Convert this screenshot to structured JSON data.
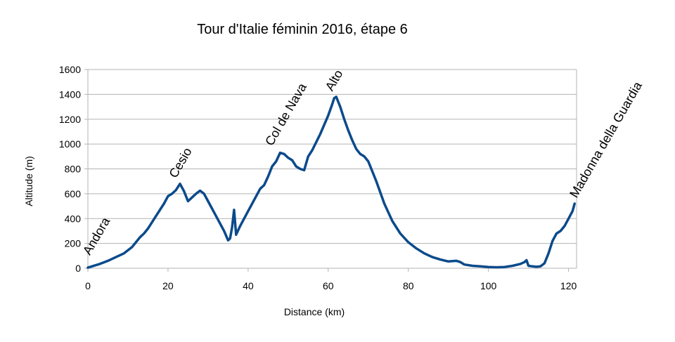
{
  "chart_data": {
    "type": "line",
    "title": "Tour d'Italie féminin 2016, étape 6",
    "xlabel": "Distance (km)",
    "ylabel": "Altitude (m)",
    "xlim": [
      0,
      122
    ],
    "ylim": [
      0,
      1600
    ],
    "x_ticks": [
      0,
      20,
      40,
      60,
      80,
      100,
      120
    ],
    "y_ticks": [
      0,
      200,
      400,
      600,
      800,
      1000,
      1200,
      1400,
      1600
    ],
    "grid": "horizontal",
    "legend": "none",
    "series_color": "#0b4a8b",
    "series": [
      {
        "x": [
          0,
          1,
          2,
          3,
          5,
          7,
          9,
          11,
          12,
          13,
          14,
          15,
          17,
          19,
          20,
          21,
          22,
          23,
          24,
          25,
          26,
          27,
          28,
          29,
          30,
          32,
          33,
          34,
          35,
          35.5,
          36,
          36.5,
          37,
          38,
          40,
          42,
          43,
          44,
          45,
          46,
          47,
          48,
          49,
          50,
          51,
          52,
          53,
          54,
          55,
          56,
          58,
          60,
          61,
          61.5,
          62,
          63,
          64,
          65,
          66,
          67,
          68,
          69,
          70,
          71,
          72,
          74,
          76,
          78,
          80,
          82,
          84,
          86,
          88,
          90,
          92,
          93,
          94,
          96,
          98,
          100,
          102,
          104,
          106,
          108,
          109,
          109.5,
          110,
          111,
          112,
          113,
          114,
          115,
          116,
          117,
          118,
          119,
          120,
          121,
          121.5
        ],
        "y": [
          5,
          15,
          25,
          35,
          60,
          90,
          120,
          170,
          210,
          250,
          280,
          320,
          420,
          520,
          580,
          600,
          630,
          680,
          620,
          540,
          570,
          600,
          625,
          600,
          540,
          420,
          360,
          300,
          225,
          240,
          330,
          470,
          270,
          340,
          460,
          580,
          640,
          670,
          740,
          820,
          860,
          930,
          920,
          890,
          870,
          820,
          800,
          790,
          900,
          950,
          1080,
          1230,
          1320,
          1370,
          1380,
          1300,
          1200,
          1110,
          1030,
          960,
          920,
          900,
          860,
          780,
          700,
          520,
          380,
          280,
          210,
          160,
          120,
          90,
          70,
          55,
          60,
          50,
          30,
          20,
          15,
          10,
          8,
          10,
          20,
          35,
          50,
          65,
          20,
          15,
          12,
          15,
          40,
          120,
          220,
          280,
          300,
          340,
          400,
          460,
          520
        ]
      }
    ],
    "annotations": [
      {
        "text": "Andora",
        "x": 0.5,
        "y": 100
      },
      {
        "text": "Cesio",
        "x": 22,
        "y": 720
      },
      {
        "text": "Col de Nava",
        "x": 46,
        "y": 980
      },
      {
        "text": "Alto",
        "x": 61,
        "y": 1420
      },
      {
        "text": "Madonna della Guardia",
        "x": 122,
        "y": 560
      }
    ]
  }
}
